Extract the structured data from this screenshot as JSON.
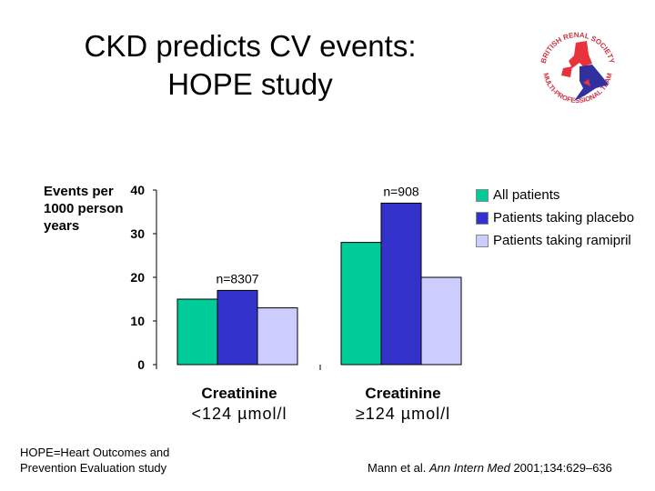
{
  "title_lines": [
    "CKD predicts CV events:",
    "HOPE study"
  ],
  "logo": {
    "text_top": "BRITISH RENAL SOCIETY",
    "text_bottom": "MULTI-PROFESSIONAL TEAM"
  },
  "chart_data": {
    "type": "bar",
    "ylabel": "Events per 1000 person years",
    "ylim": [
      0,
      40
    ],
    "yticks": [
      0,
      10,
      20,
      30,
      40
    ],
    "categories": [
      {
        "line1": "Creatinine",
        "line2": "<124 µmol/l"
      },
      {
        "line1": "Creatinine",
        "line2": "≥124 µmol/l"
      }
    ],
    "annotations": [
      "n=8307",
      "n=908"
    ],
    "legend_position": "top-right",
    "series": [
      {
        "name": "All patients",
        "color": "#00CC99",
        "values": [
          15,
          28
        ]
      },
      {
        "name": "Patients taking placebo",
        "color": "#3333CC",
        "values": [
          17,
          37
        ]
      },
      {
        "name": "Patients taking ramipril",
        "color": "#CCCCFF",
        "values": [
          13,
          20
        ]
      }
    ]
  },
  "footnote_left": [
    "HOPE=Heart Outcomes and",
    "Prevention Evaluation study"
  ],
  "citation": {
    "authors": "Mann et al. ",
    "journal": "Ann Intern Med",
    "rest": " 2001;134:629–636"
  }
}
